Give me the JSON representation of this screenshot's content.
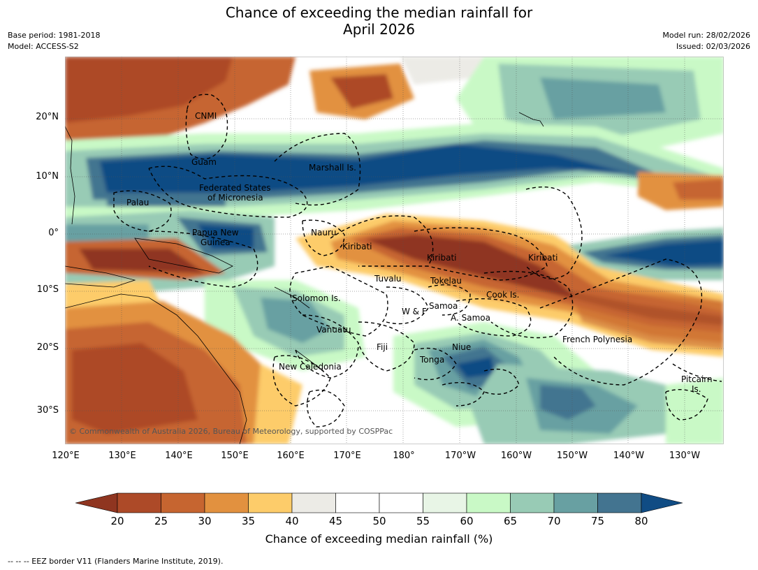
{
  "header": {
    "title_line1": "Chance of exceeding the median rainfall for",
    "title_line2": "April 2026",
    "base_period": "Base period: 1981-2018",
    "model": "Model: ACCESS-S2",
    "model_run": "Model run: 28/02/2026",
    "issued": "Issued: 02/03/2026"
  },
  "map": {
    "lat_labels": [
      "20°N",
      "10°N",
      "0°",
      "10°S",
      "20°S",
      "30°S"
    ],
    "lon_labels": [
      "120°E",
      "130°E",
      "140°E",
      "150°E",
      "160°E",
      "170°E",
      "180°",
      "170°W",
      "160°W",
      "150°W",
      "140°W",
      "130°W"
    ],
    "regions": {
      "cnmi": "CNMI",
      "guam": "Guam",
      "marshall": "Marshall Is.",
      "fsm1": "Federated States",
      "fsm2": "of Micronesia",
      "palau": "Palau",
      "png1": "Papua New",
      "png2": "Guinea",
      "nauru": "Nauru",
      "kiribati1": "Kiribati",
      "kiribati2": "Kiribati",
      "kiribati3": "Kiribati",
      "tuvalu": "Tuvalu",
      "tokelau": "Tokelau",
      "cook": "Cook Is.",
      "solomon": "Solomon Is.",
      "wf": "W & F",
      "samoa": "Samoa",
      "asamoa": "A. Samoa",
      "vanuatu": "Vanuatu",
      "fiji": "Fiji",
      "niue": "Niue",
      "tonga": "Tonga",
      "frpoly": "French Polynesia",
      "newcal": "New Caledonia",
      "pitcairn1": "Pitcairn",
      "pitcairn2": "Is."
    },
    "copyright": "© Commonwealth of Australia 2026, Bureau of Meteorology, supported by COSPPac"
  },
  "colorbar": {
    "ticks": [
      "20",
      "25",
      "30",
      "35",
      "40",
      "45",
      "50",
      "55",
      "60",
      "65",
      "70",
      "75",
      "80"
    ],
    "levels": [
      {
        "range": "<20",
        "color": "#8f3520"
      },
      {
        "range": "20-25",
        "color": "#ad4a28"
      },
      {
        "range": "25-30",
        "color": "#c66530"
      },
      {
        "range": "30-35",
        "color": "#e2913f"
      },
      {
        "range": "35-40",
        "color": "#fdcc6a"
      },
      {
        "range": "40-45",
        "color": "#ecebe6"
      },
      {
        "range": "45-50",
        "color": "#ffffff"
      },
      {
        "range": "50-55",
        "color": "#ffffff"
      },
      {
        "range": "55-60",
        "color": "#e8f5e6"
      },
      {
        "range": "60-65",
        "color": "#c9f9c6"
      },
      {
        "range": "65-70",
        "color": "#98cbb5"
      },
      {
        "range": "70-75",
        "color": "#68a0a2"
      },
      {
        "range": "75-80",
        "color": "#437490"
      },
      {
        "range": ">80",
        "color": "#104c84"
      }
    ],
    "title": "Chance of exceeding median rainfall (%)"
  },
  "footer": "--  --  -- EEZ border V11 (Flanders Marine Institute, 2019)."
}
